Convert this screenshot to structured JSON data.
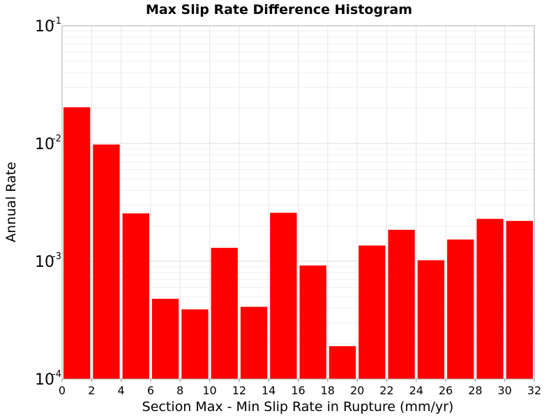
{
  "chart_data": {
    "type": "bar",
    "title": "Max Slip Rate Difference Histogram",
    "xlabel": "Section Max - Min Slip Rate in Rupture (mm/yr)",
    "ylabel": "Annual Rate",
    "xlim": [
      0,
      32
    ],
    "ylim": [
      0.0001,
      0.1
    ],
    "yscale": "log",
    "bin_width": 2,
    "bars": [
      {
        "x": 1,
        "value": 0.0203
      },
      {
        "x": 3,
        "value": 0.0098
      },
      {
        "x": 5,
        "value": 0.00255
      },
      {
        "x": 7,
        "value": 0.00048
      },
      {
        "x": 9,
        "value": 0.00039
      },
      {
        "x": 11,
        "value": 0.0013
      },
      {
        "x": 13,
        "value": 0.00041
      },
      {
        "x": 15,
        "value": 0.00258
      },
      {
        "x": 17,
        "value": 0.00092
      },
      {
        "x": 19,
        "value": 0.00019
      },
      {
        "x": 21,
        "value": 0.00136
      },
      {
        "x": 23,
        "value": 0.00185
      },
      {
        "x": 25,
        "value": 0.00102
      },
      {
        "x": 27,
        "value": 0.00153
      },
      {
        "x": 29,
        "value": 0.00229
      },
      {
        "x": 31,
        "value": 0.0022
      }
    ],
    "xticks": [
      "0",
      "2",
      "4",
      "6",
      "8",
      "10",
      "12",
      "14",
      "16",
      "18",
      "20",
      "22",
      "24",
      "26",
      "28",
      "30",
      "32"
    ],
    "yticks": [
      {
        "value": 0.1,
        "base": "10",
        "exp": "-1"
      },
      {
        "value": 0.01,
        "base": "10",
        "exp": "-2"
      },
      {
        "value": 0.001,
        "base": "10",
        "exp": "-3"
      },
      {
        "value": 0.0001,
        "base": "10",
        "exp": "-4"
      }
    ],
    "bar_color": "#ff0000",
    "grid": true,
    "legend": "none"
  }
}
